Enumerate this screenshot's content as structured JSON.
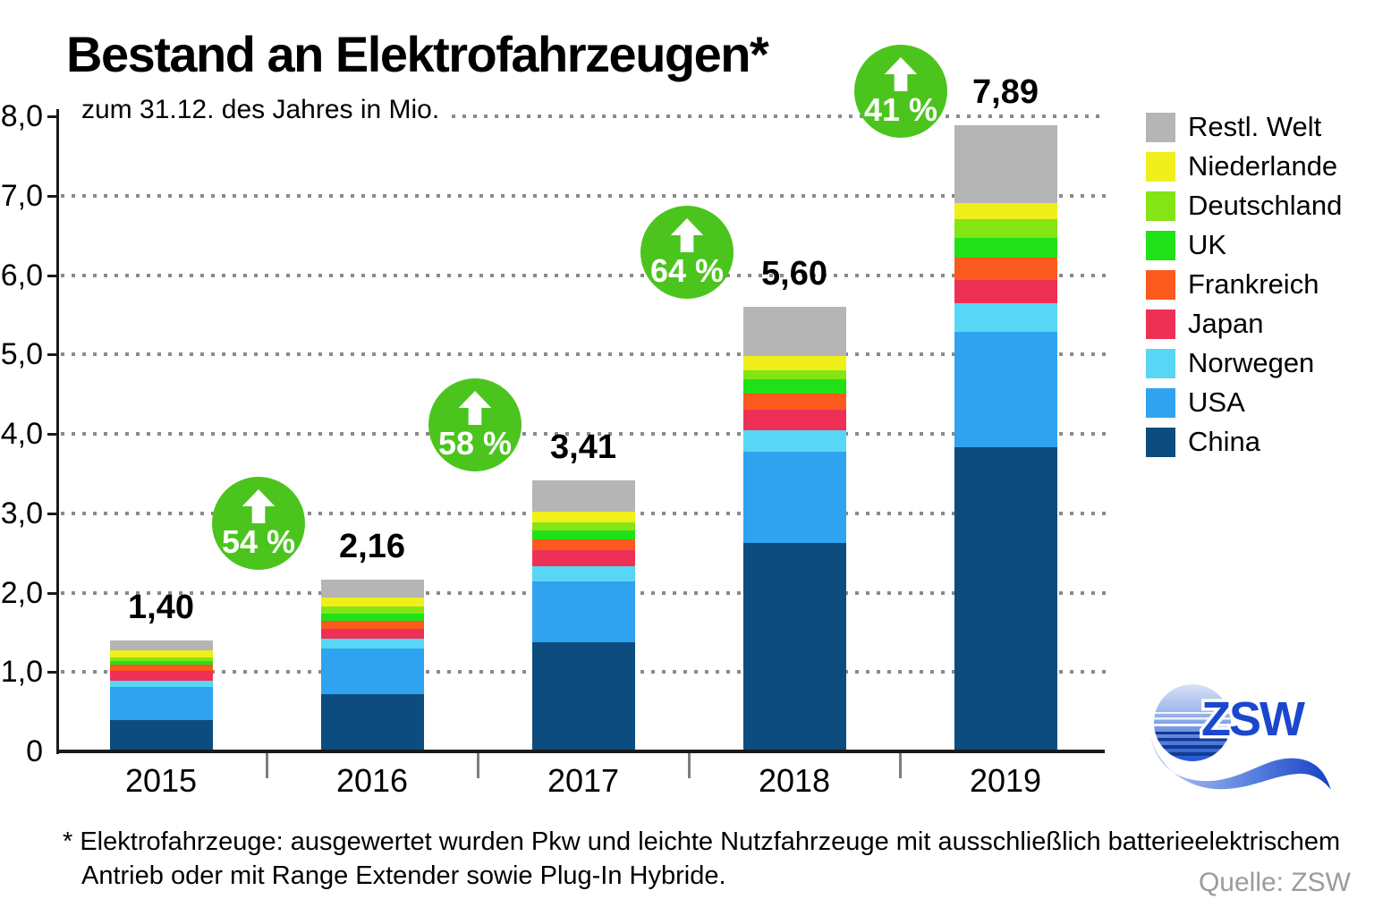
{
  "title": "Bestand an Elektrofahrzeugen*",
  "subtitle": "zum 31.12. des Jahres in Mio.",
  "footnote": {
    "line1": "* Elektrofahrzeuge: ausgewertet wurden Pkw und leichte Nutzfahrzeuge mit ausschließlich batterieelektrischem",
    "line2": "Antrieb oder mit Range Extender sowie Plug-In Hybride."
  },
  "source": "Quelle: ZSW",
  "logo": {
    "text": "ZSW"
  },
  "colors": {
    "badge_green": "#4cc41e",
    "grid_dots": "#8a8a8a",
    "axis": "#1a1a1a",
    "source_gray": "#9b9b9b",
    "logo_blue": "#1b47cf"
  },
  "chart_data": {
    "type": "bar",
    "stacked": true,
    "title": "Bestand an Elektrofahrzeugen*",
    "subtitle": "zum 31.12. des Jahres in Mio.",
    "unit": "Mio. Fahrzeuge",
    "categories": [
      "2015",
      "2016",
      "2017",
      "2018",
      "2019"
    ],
    "series": [
      {
        "name": "China",
        "color": "#0c4c7e",
        "values": [
          0.4,
          0.72,
          1.37,
          2.63,
          3.83
        ]
      },
      {
        "name": "USA",
        "color": "#2fa3f0",
        "values": [
          0.41,
          0.58,
          0.77,
          1.14,
          1.45
        ]
      },
      {
        "name": "Norwegen",
        "color": "#58d6f5",
        "values": [
          0.08,
          0.12,
          0.19,
          0.28,
          0.37
        ]
      },
      {
        "name": "Japan",
        "color": "#ef3056",
        "values": [
          0.12,
          0.12,
          0.2,
          0.25,
          0.29
        ]
      },
      {
        "name": "Frankreich",
        "color": "#fb5a1e",
        "values": [
          0.08,
          0.11,
          0.14,
          0.21,
          0.28
        ]
      },
      {
        "name": "UK",
        "color": "#20e118",
        "values": [
          0.05,
          0.08,
          0.11,
          0.18,
          0.25
        ]
      },
      {
        "name": "Deutschland",
        "color": "#84e414",
        "values": [
          0.04,
          0.09,
          0.1,
          0.11,
          0.23
        ]
      },
      {
        "name": "Niederlande",
        "color": "#f0ef1c",
        "values": [
          0.09,
          0.12,
          0.14,
          0.18,
          0.21
        ]
      },
      {
        "name": "Restl. Welt",
        "color": "#b5b5b5",
        "values": [
          0.13,
          0.22,
          0.39,
          0.62,
          0.98
        ]
      }
    ],
    "totals": [
      "1,40",
      "2,16",
      "3,41",
      "5,60",
      "7,89"
    ],
    "growth_badges": [
      "54 %",
      "58 %",
      "64 %",
      "41 %"
    ],
    "ylim": [
      0,
      8
    ],
    "ytick_labels": [
      "0",
      "1,0",
      "2,0",
      "3,0",
      "4,0",
      "5,0",
      "6,0",
      "7,0",
      "8,0"
    ],
    "grid": "dotted horizontal",
    "legend_position": "right",
    "legend_order": "top-to-bottom reversed stack"
  }
}
